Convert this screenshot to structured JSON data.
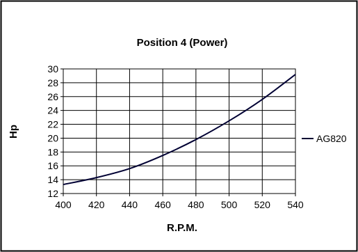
{
  "chart_data": {
    "type": "line",
    "title": "Position 4 (Power)",
    "xlabel": "R.P.M.",
    "ylabel": "Hp",
    "xlim": [
      400,
      540
    ],
    "ylim": [
      12,
      30
    ],
    "xticks": [
      400,
      420,
      440,
      460,
      480,
      500,
      520,
      540
    ],
    "yticks": [
      12,
      14,
      16,
      18,
      20,
      22,
      24,
      26,
      28,
      30
    ],
    "grid": true,
    "legend_position": "right",
    "series": [
      {
        "name": "AG820",
        "color": "#000033",
        "x": [
          400,
          420,
          440,
          460,
          480,
          500,
          520,
          540
        ],
        "y": [
          13.3,
          14.3,
          15.6,
          17.5,
          19.8,
          22.5,
          25.6,
          29.2
        ]
      }
    ]
  }
}
